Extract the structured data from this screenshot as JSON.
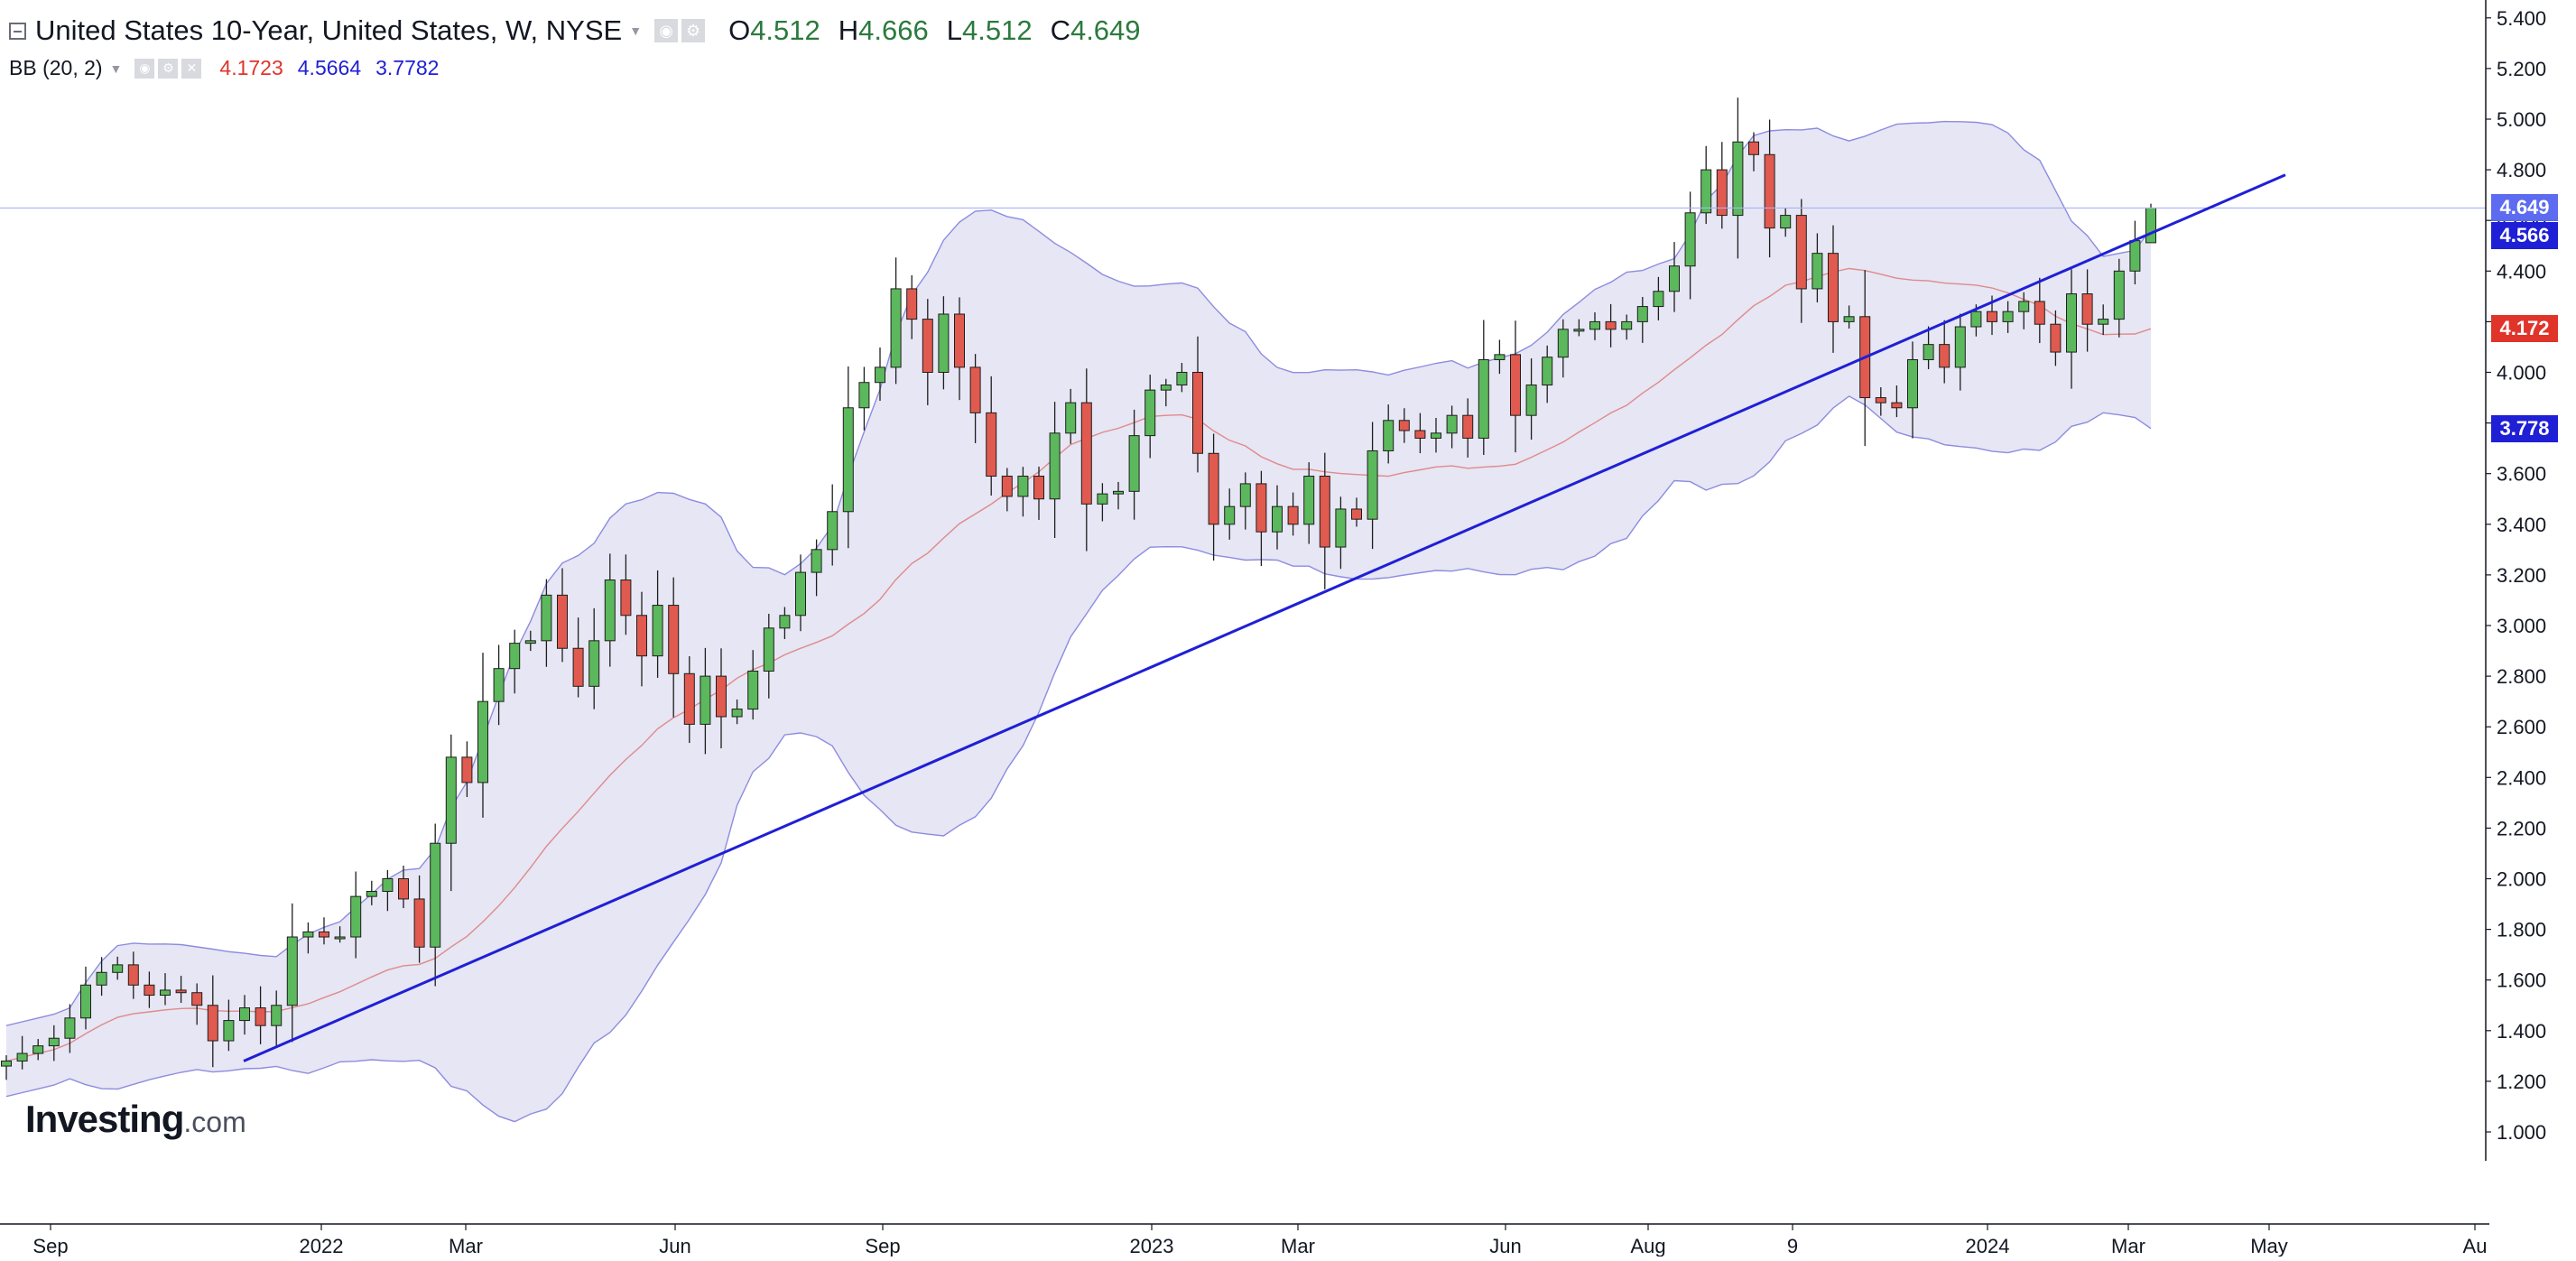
{
  "legend": {
    "title": "United States 10-Year, United States, W, NYSE",
    "ohlc": [
      {
        "label": "O",
        "value": "4.512"
      },
      {
        "label": "H",
        "value": "4.666"
      },
      {
        "label": "L",
        "value": "4.512"
      },
      {
        "label": "C",
        "value": "4.649"
      }
    ],
    "indicator": "BB (20, 2)",
    "bb_values": {
      "middle": "4.1723",
      "upper": "4.5664",
      "lower": "3.7782"
    }
  },
  "price_tags": {
    "last": "4.649",
    "upper": "4.566",
    "middle": "4.172",
    "lower": "3.778"
  },
  "logo": {
    "main": "Investing",
    "suffix": ".com"
  },
  "colors": {
    "up": "#5cb85c",
    "down": "#e05a4f",
    "band_fill": "#e6e6f4",
    "band_line": "#8c8ce0",
    "mid_line": "#e08a8a",
    "trend": "#1f1fd6",
    "last_tag": "#5c6bf0",
    "upper_tag": "#1f1fd6",
    "middle_tag": "#e0342b",
    "lower_tag": "#1f1fd6"
  },
  "chart_data": {
    "type": "candlestick",
    "title": "United States 10-Year, United States, W, NYSE",
    "interval": "Weekly",
    "x_tick_labels": [
      "Sep",
      "2022",
      "Mar",
      "Jun",
      "Sep",
      "2023",
      "Mar",
      "Jun",
      "Aug",
      "9",
      "2024",
      "Mar",
      "May",
      "Au"
    ],
    "y_tick_labels": [
      "1.000",
      "1.200",
      "1.400",
      "1.600",
      "1.800",
      "2.000",
      "2.200",
      "2.400",
      "2.600",
      "2.800",
      "3.000",
      "3.200",
      "3.400",
      "3.600",
      "3.800",
      "4.000",
      "4.200",
      "4.400",
      "4.600",
      "4.800",
      "5.000",
      "5.200",
      "5.400"
    ],
    "ylim": [
      0.9,
      5.45
    ],
    "grid": false,
    "axis_position": "right",
    "weekly_close": [
      1.28,
      1.31,
      1.34,
      1.37,
      1.45,
      1.58,
      1.63,
      1.66,
      1.58,
      1.54,
      1.56,
      1.55,
      1.5,
      1.36,
      1.44,
      1.49,
      1.42,
      1.5,
      1.77,
      1.79,
      1.77,
      1.77,
      1.93,
      1.95,
      2.0,
      1.92,
      1.73,
      2.14,
      2.48,
      2.38,
      2.7,
      2.83,
      2.93,
      2.94,
      3.12,
      2.91,
      2.76,
      2.94,
      3.18,
      3.04,
      2.88,
      3.08,
      2.81,
      2.61,
      2.8,
      2.64,
      2.67,
      2.82,
      2.99,
      3.04,
      3.21,
      3.3,
      3.45,
      3.86,
      3.96,
      4.02,
      4.33,
      4.21,
      4.0,
      4.23,
      4.02,
      3.84,
      3.59,
      3.51,
      3.59,
      3.5,
      3.76,
      3.88,
      3.48,
      3.52,
      3.53,
      3.75,
      3.93,
      3.95,
      4.0,
      3.68,
      3.4,
      3.47,
      3.56,
      3.37,
      3.47,
      3.4,
      3.59,
      3.31,
      3.46,
      3.42,
      3.69,
      3.81,
      3.77,
      3.74,
      3.76,
      3.83,
      3.74,
      4.05,
      4.07,
      3.83,
      3.95,
      4.06,
      4.17,
      4.17,
      4.2,
      4.17,
      4.2,
      4.26,
      4.32,
      4.42,
      4.63,
      4.8,
      4.62,
      4.91,
      4.86,
      4.57,
      4.62,
      4.33,
      4.47,
      4.2,
      4.22,
      3.9,
      3.88,
      3.86,
      4.05,
      4.11,
      4.02,
      4.18,
      4.24,
      4.2,
      4.24,
      4.28,
      4.19,
      4.08,
      4.31,
      4.19,
      4.21,
      4.4,
      4.52,
      4.649
    ],
    "last_bar": {
      "open": 4.512,
      "high": 4.666,
      "low": 4.512,
      "close": 4.649
    },
    "series": [
      {
        "name": "BB (20, 2)",
        "upper": 4.5664,
        "middle": 4.1723,
        "lower": 3.7782
      }
    ],
    "annotations": [
      {
        "type": "trendline",
        "from": {
          "date": "Dec 2021",
          "value": 1.28
        },
        "to": {
          "date": "Apr 2024",
          "value": 4.78
        }
      },
      {
        "type": "horizontal_line",
        "value": 4.649
      }
    ]
  }
}
